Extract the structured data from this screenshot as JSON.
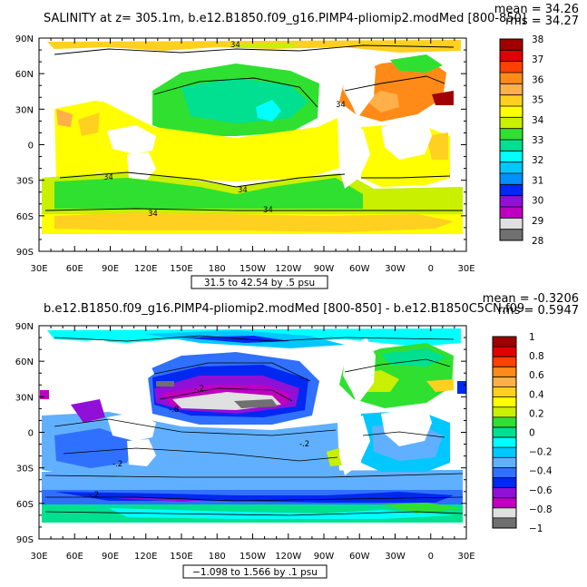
{
  "chart_data": [
    {
      "type": "heatmap",
      "title": "SALINITY at z=  305.1m, b.e12.B1850.f09_g16.PIMP4-pliomip2.modMed [800-850]",
      "stats": [
        "mean = 34.26",
        "rms = 34.27"
      ],
      "x_ticks": [
        "30E",
        "60E",
        "90E",
        "120E",
        "150E",
        "180",
        "150W",
        "120W",
        "90W",
        "60W",
        "30W",
        "0",
        "30E"
      ],
      "y_ticks": [
        "90N",
        "60N",
        "30N",
        "0",
        "30S",
        "60S",
        "90S"
      ],
      "colorbar": {
        "labels": [
          "38",
          "37",
          "36",
          "35",
          "34",
          "33",
          "32",
          "31",
          "30",
          "29",
          "28"
        ],
        "colors": [
          "#a00000",
          "#e00000",
          "#ff4000",
          "#ff8a18",
          "#ffb048",
          "#ffd020",
          "#ffff00",
          "#c8f000",
          "#30e030",
          "#00e090",
          "#00ffff",
          "#00c8ff",
          "#0090ff",
          "#0028f0",
          "#9010d8",
          "#c000c0",
          "#e0e0e0",
          "#707070"
        ]
      },
      "range_label": "31.5 to 42.54 by .5 psu",
      "contour_labels": [
        "34",
        "34",
        "34",
        "34",
        "34",
        "34"
      ]
    },
    {
      "type": "heatmap",
      "title": "b.e12.B1850.f09_g16.PIMP4-pliomip2.modMed [800-850] - b.e12.B1850C5CN.f09",
      "stats": [
        "mean = -0.3206",
        "rms = 0.5947"
      ],
      "x_ticks": [
        "30E",
        "60E",
        "90E",
        "120E",
        "150E",
        "180",
        "150W",
        "120W",
        "90W",
        "60W",
        "30W",
        "0",
        "30E"
      ],
      "y_ticks": [
        "90N",
        "60N",
        "30N",
        "0",
        "30S",
        "60S",
        "90S"
      ],
      "colorbar": {
        "labels": [
          "1",
          "0.8",
          "0.6",
          "0.4",
          "0.2",
          "0",
          "−0.2",
          "−0.4",
          "−0.6",
          "−0.8",
          "−1"
        ],
        "colors": [
          "#a00000",
          "#e00000",
          "#ff4000",
          "#ff8a18",
          "#ffb048",
          "#ffd020",
          "#ffff00",
          "#c8f000",
          "#30e030",
          "#00e090",
          "#00ffff",
          "#00c8ff",
          "#60b0ff",
          "#3070ff",
          "#0028f0",
          "#9010d8",
          "#c000c0",
          "#e0e0e0",
          "#707070"
        ]
      },
      "range_label": "−1.098 to 1.566 by .1 psu",
      "contour_labels": [
        "-.2",
        "-.2",
        "-.8",
        "-.2",
        "-.2"
      ]
    }
  ]
}
